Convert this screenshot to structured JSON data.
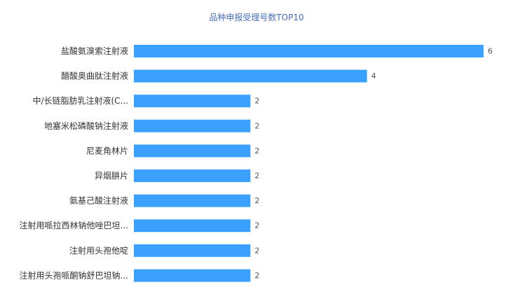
{
  "chart_data": {
    "type": "bar",
    "orientation": "horizontal",
    "title": "品种申报受理号数TOP10",
    "categories": [
      "盐酸氨溴索注射液",
      "醋酸奥曲肽注射液",
      "中/长链脂肪乳注射液(C...",
      "地塞米松磷酸钠注射液",
      "尼麦角林片",
      "异烟肼片",
      "氨基己酸注射液",
      "注射用哌拉西林钠他唑巴坦...",
      "注射用头孢他啶",
      "注射用头孢哌酮钠舒巴坦钠..."
    ],
    "values": [
      6,
      4,
      2,
      2,
      2,
      2,
      2,
      2,
      2,
      2
    ],
    "xlim": [
      0,
      6
    ],
    "grid": false,
    "bar_color": "#3aa1ff",
    "title_color": "#4a6fb5"
  }
}
